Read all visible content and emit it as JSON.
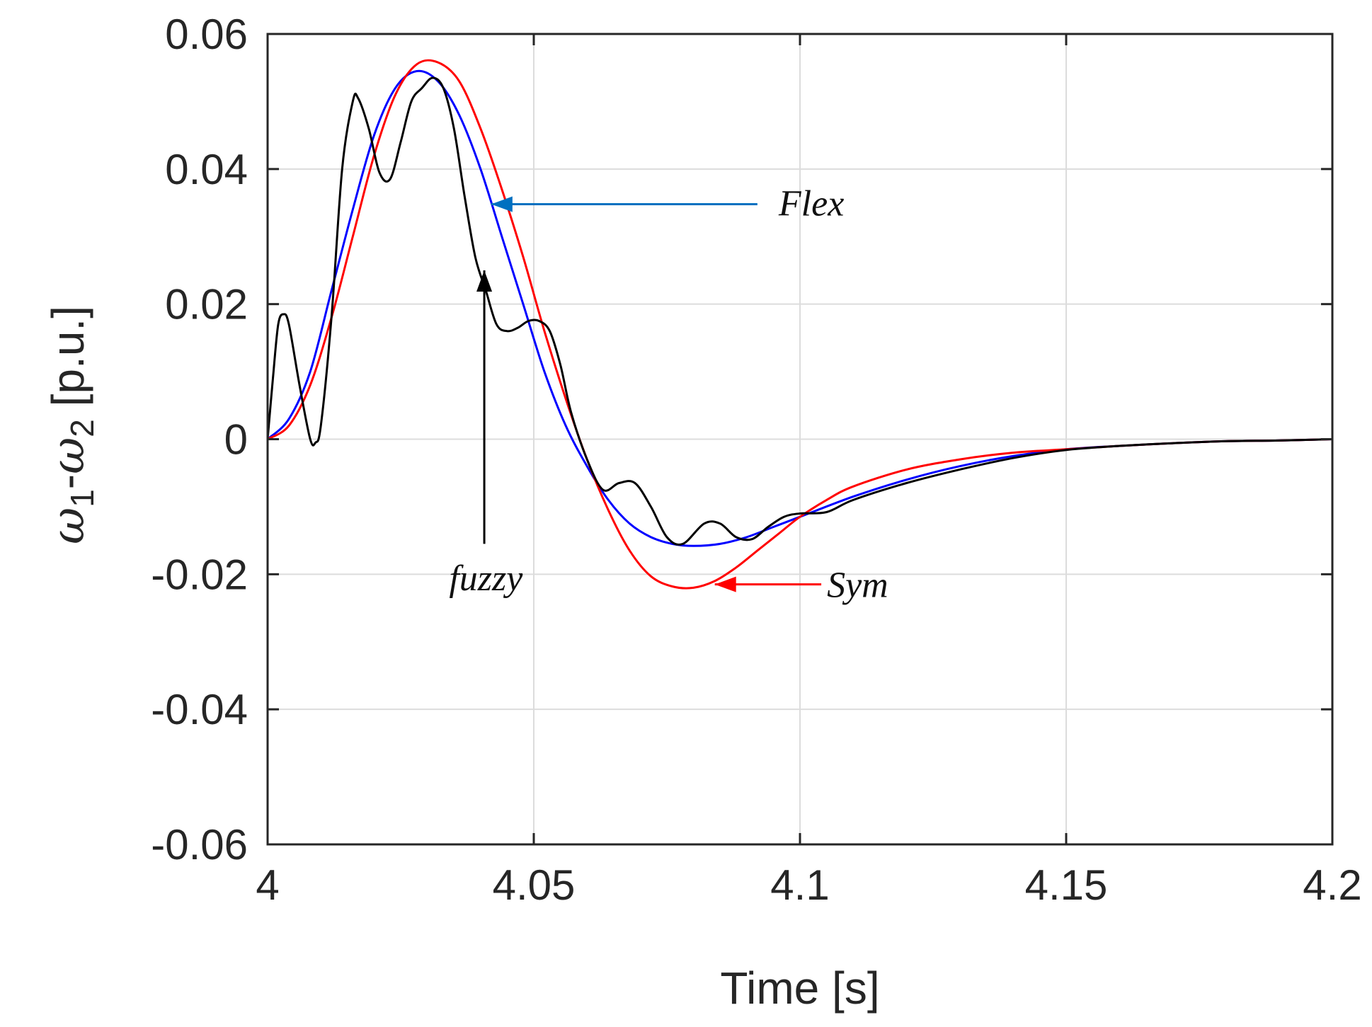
{
  "chart_data": {
    "type": "line",
    "title": "",
    "xlabel": "Time [s]",
    "ylabel": {
      "omega": "ω",
      "sub1": "1",
      "dash": "-",
      "sub2": "2",
      "unit": " [p.u.]"
    },
    "xlim": [
      4,
      4.2
    ],
    "ylim": [
      -0.06,
      0.06
    ],
    "xticks": [
      4,
      4.05,
      4.1,
      4.15,
      4.2
    ],
    "xtick_labels": [
      "4",
      "4.05",
      "4.1",
      "4.15",
      "4.2"
    ],
    "yticks": [
      0.06,
      0.04,
      0.02,
      0,
      -0.02,
      -0.04,
      -0.06
    ],
    "ytick_labels": [
      "0.06",
      "0.04",
      "0.02",
      "0",
      "-0.02",
      "-0.04",
      "-0.06"
    ],
    "grid": true,
    "series": [
      {
        "name": "Flex",
        "color": "#0000ff",
        "x": [
          4.0,
          4.004,
          4.008,
          4.012,
          4.016,
          4.02,
          4.024,
          4.028,
          4.032,
          4.036,
          4.04,
          4.044,
          4.048,
          4.052,
          4.056,
          4.06,
          4.064,
          4.068,
          4.072,
          4.076,
          4.08,
          4.085,
          4.09,
          4.095,
          4.1,
          4.11,
          4.12,
          4.13,
          4.14,
          4.15,
          4.16,
          4.17,
          4.18,
          4.19,
          4.2
        ],
        "y": [
          0.0,
          0.003,
          0.01,
          0.022,
          0.034,
          0.045,
          0.052,
          0.0545,
          0.053,
          0.048,
          0.04,
          0.03,
          0.02,
          0.01,
          0.002,
          -0.004,
          -0.009,
          -0.0125,
          -0.0145,
          -0.0155,
          -0.0158,
          -0.0155,
          -0.0145,
          -0.013,
          -0.0115,
          -0.0085,
          -0.006,
          -0.004,
          -0.0025,
          -0.0015,
          -0.001,
          -0.0006,
          -0.0003,
          -0.0002,
          0.0
        ]
      },
      {
        "name": "Sym",
        "color": "#ff0000",
        "x": [
          4.0,
          4.004,
          4.008,
          4.012,
          4.016,
          4.02,
          4.024,
          4.028,
          4.032,
          4.036,
          4.04,
          4.044,
          4.048,
          4.052,
          4.056,
          4.06,
          4.064,
          4.068,
          4.072,
          4.076,
          4.08,
          4.084,
          4.088,
          4.092,
          4.096,
          4.1,
          4.105,
          4.11,
          4.12,
          4.13,
          4.14,
          4.15,
          4.16,
          4.17,
          4.18,
          4.19,
          4.2
        ],
        "y": [
          0.0,
          0.002,
          0.008,
          0.018,
          0.03,
          0.042,
          0.051,
          0.0555,
          0.0558,
          0.053,
          0.046,
          0.037,
          0.027,
          0.016,
          0.006,
          -0.003,
          -0.0105,
          -0.0165,
          -0.0203,
          -0.0218,
          -0.022,
          -0.021,
          -0.019,
          -0.0165,
          -0.014,
          -0.0115,
          -0.009,
          -0.007,
          -0.0045,
          -0.003,
          -0.002,
          -0.0015,
          -0.001,
          -0.0006,
          -0.0003,
          -0.0002,
          0.0
        ]
      },
      {
        "name": "fuzzy",
        "color": "#000000",
        "x": [
          4.0,
          4.001,
          4.002,
          4.003,
          4.004,
          4.006,
          4.008,
          4.009,
          4.01,
          4.012,
          4.014,
          4.016,
          4.017,
          4.019,
          4.021,
          4.023,
          4.025,
          4.027,
          4.029,
          4.031,
          4.033,
          4.035,
          4.037,
          4.039,
          4.041,
          4.043,
          4.045,
          4.047,
          4.049,
          4.051,
          4.053,
          4.055,
          4.057,
          4.06,
          4.063,
          4.066,
          4.069,
          4.072,
          4.075,
          4.078,
          4.082,
          4.085,
          4.088,
          4.091,
          4.094,
          4.097,
          4.1,
          4.105,
          4.11,
          4.12,
          4.13,
          4.14,
          4.15,
          4.16,
          4.17,
          4.18,
          4.19,
          4.2
        ],
        "y": [
          0.0,
          0.009,
          0.017,
          0.0185,
          0.017,
          0.008,
          0.0,
          -0.0005,
          0.002,
          0.018,
          0.04,
          0.05,
          0.0505,
          0.046,
          0.0395,
          0.0385,
          0.044,
          0.05,
          0.052,
          0.0535,
          0.052,
          0.046,
          0.036,
          0.027,
          0.022,
          0.017,
          0.016,
          0.0165,
          0.0175,
          0.0175,
          0.016,
          0.011,
          0.004,
          -0.003,
          -0.0075,
          -0.0065,
          -0.0065,
          -0.01,
          -0.0145,
          -0.0155,
          -0.0125,
          -0.0125,
          -0.0145,
          -0.0148,
          -0.013,
          -0.0115,
          -0.011,
          -0.0108,
          -0.009,
          -0.0065,
          -0.0045,
          -0.0028,
          -0.0016,
          -0.001,
          -0.0006,
          -0.0003,
          -0.0002,
          0.0
        ]
      }
    ],
    "annotations": [
      {
        "text": "Flex",
        "color": "#0070c0",
        "text_at": [
          4.096,
          0.035
        ],
        "arrow_from": [
          4.092,
          0.0348
        ],
        "arrow_to": [
          4.042,
          0.0348
        ]
      },
      {
        "text": "Sym",
        "color": "#ff0000",
        "text_at": [
          4.104,
          -0.0215
        ],
        "arrow_from": [
          4.104,
          -0.0215
        ],
        "arrow_to": [
          4.084,
          -0.0215
        ]
      },
      {
        "text": "fuzzy",
        "color": "#000000",
        "text_at": [
          4.041,
          -0.0205
        ],
        "arrow_from": [
          4.0407,
          -0.0155
        ],
        "arrow_to": [
          4.0407,
          0.025
        ]
      }
    ]
  }
}
